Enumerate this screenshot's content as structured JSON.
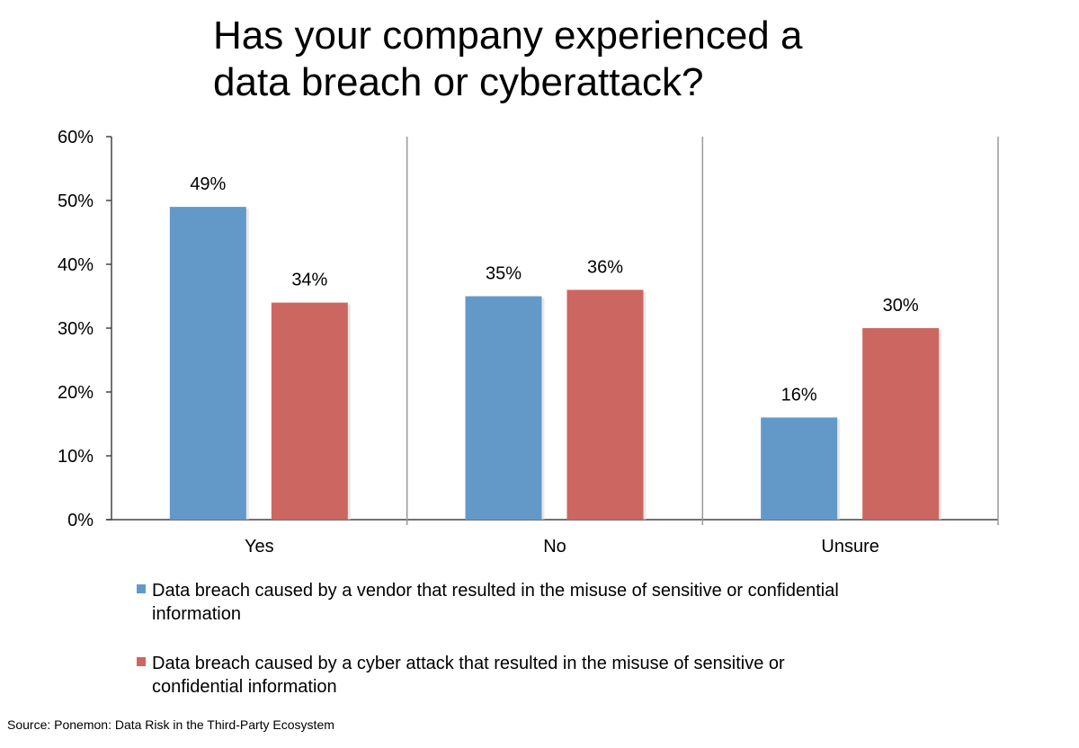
{
  "title_lines": [
    "Has your company experienced a",
    "data breach or cyberattack?"
  ],
  "source": "Source: Ponemon: Data Risk in the Third-Party Ecosystem",
  "colors": {
    "vendor": "#6399c9",
    "cyber": "#cc6660"
  },
  "chart_data": {
    "type": "bar",
    "title": "Has your company experienced a data breach or cyberattack?",
    "categories": [
      "Yes",
      "No",
      "Unsure"
    ],
    "series": [
      {
        "name": "Data breach caused by a vendor that resulted in the misuse of sensitive or confidential information",
        "values": [
          49,
          35,
          16
        ],
        "labels": [
          "49%",
          "35%",
          "16%"
        ]
      },
      {
        "name": "Data breach caused by a cyber attack that resulted in the misuse of sensitive or confidential information",
        "values": [
          34,
          36,
          30
        ],
        "labels": [
          "34%",
          "36%",
          "30%"
        ]
      }
    ],
    "ylim": [
      0,
      60
    ],
    "yticks": [
      "0%",
      "10%",
      "20%",
      "30%",
      "40%",
      "50%",
      "60%"
    ],
    "legend_position": "bottom",
    "grid": false
  },
  "legend": [
    {
      "line1": "Data breach caused by a vendor that resulted in the misuse of sensitive or confidential",
      "line2": "information"
    },
    {
      "line1": "Data breach caused by a cyber attack that resulted in the misuse of sensitive or",
      "line2": "confidential information"
    }
  ]
}
